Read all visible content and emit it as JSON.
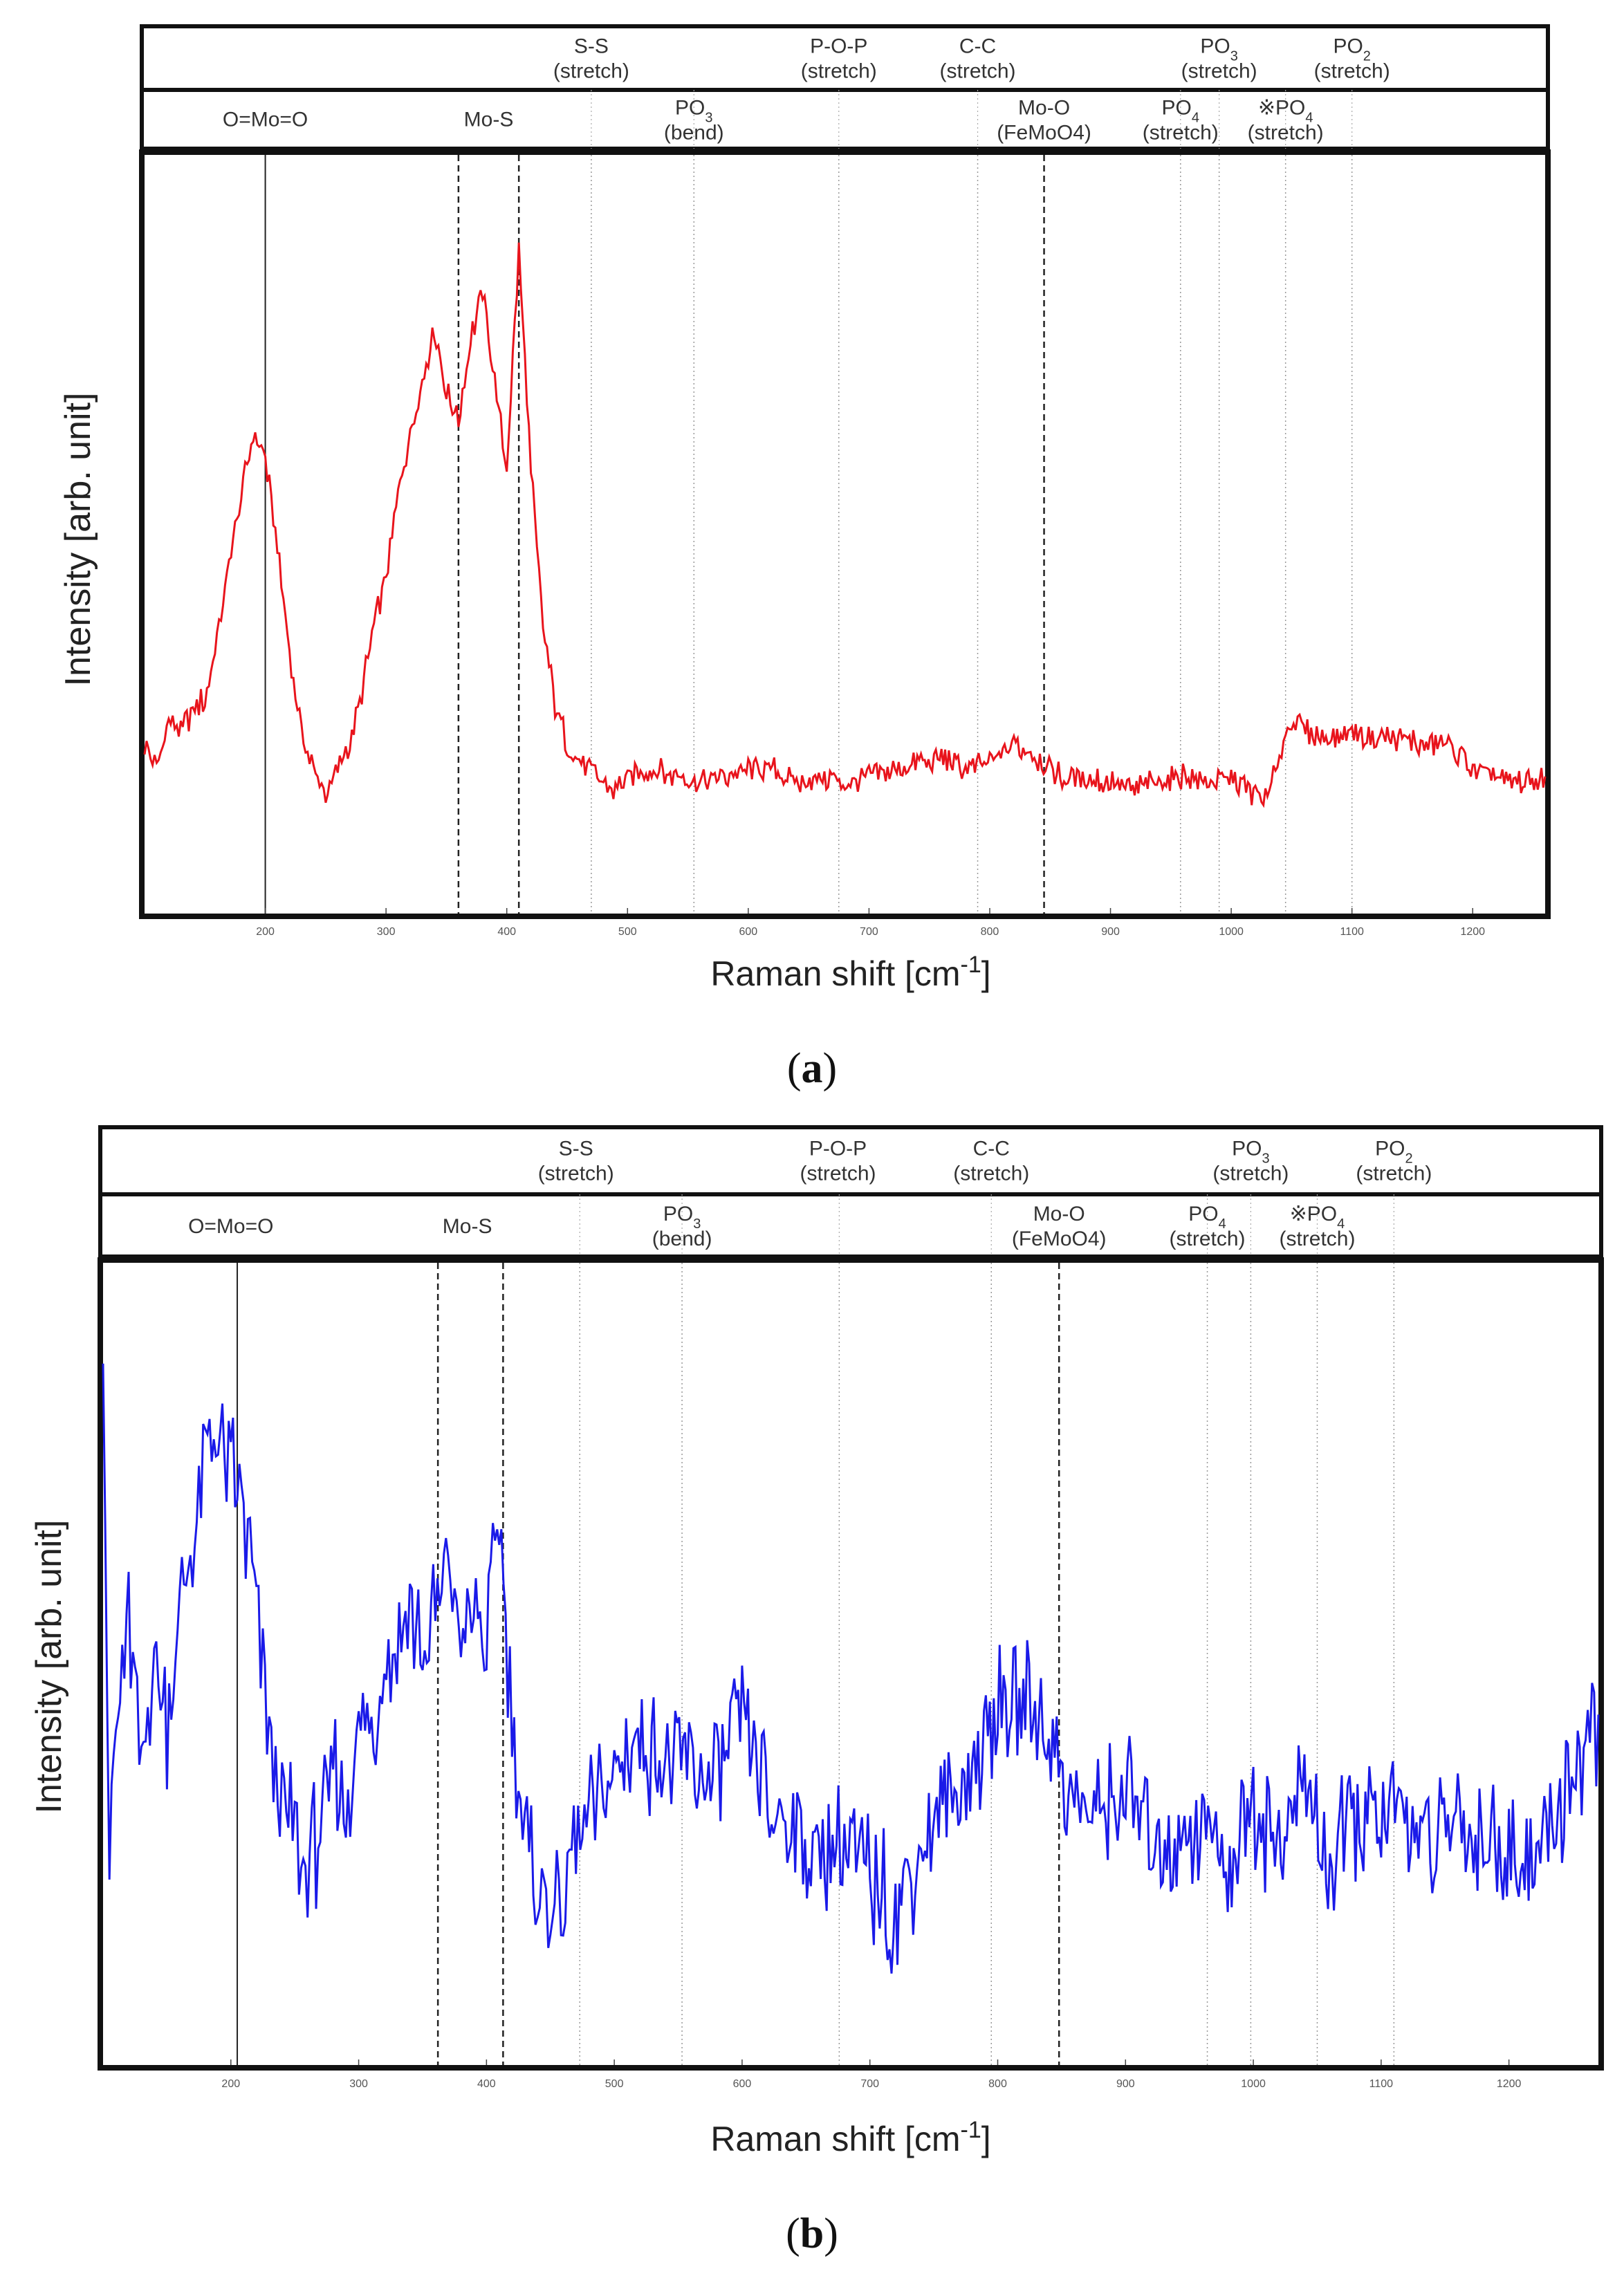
{
  "chart_data": [
    {
      "type": "line",
      "panel": "(a)",
      "panel_letter": "a",
      "xlabel": "Raman shift [cm-1]",
      "ylabel": "Intensity [arb. unit]",
      "xlim": [
        100,
        1260
      ],
      "ylim": [
        0,
        100
      ],
      "xticks": [
        200,
        300,
        400,
        500,
        600,
        700,
        800,
        900,
        1000,
        1100,
        1200
      ],
      "series": [
        {
          "name": "spectrum-a",
          "color": "#e8141c",
          "x": [
            100,
            110,
            120,
            130,
            140,
            150,
            160,
            170,
            180,
            190,
            200,
            210,
            220,
            230,
            240,
            250,
            260,
            270,
            280,
            290,
            300,
            310,
            320,
            330,
            340,
            350,
            360,
            370,
            380,
            390,
            400,
            410,
            420,
            430,
            440,
            450,
            460,
            470,
            480,
            490,
            500,
            520,
            540,
            560,
            580,
            600,
            620,
            640,
            660,
            680,
            700,
            720,
            740,
            760,
            780,
            800,
            820,
            840,
            860,
            880,
            900,
            920,
            940,
            960,
            980,
            1000,
            1020,
            1030,
            1040,
            1050,
            1060,
            1080,
            1100,
            1120,
            1140,
            1160,
            1180,
            1200,
            1220,
            1240,
            1260
          ],
          "values": [
            18,
            14,
            22,
            20,
            23,
            25,
            34,
            46,
            56,
            66,
            62,
            48,
            32,
            20,
            14,
            10,
            14,
            18,
            26,
            36,
            44,
            56,
            66,
            74,
            82,
            72,
            68,
            80,
            88,
            74,
            60,
            94,
            60,
            36,
            24,
            18,
            16,
            14,
            12,
            11,
            13,
            14,
            13,
            12,
            13,
            14,
            14,
            12,
            13,
            12,
            13,
            14,
            15,
            16,
            14,
            15,
            18,
            16,
            13,
            13,
            12,
            11,
            12,
            13,
            12,
            13,
            10,
            9,
            16,
            22,
            20,
            19,
            20,
            19,
            19,
            18,
            18,
            14,
            13,
            12,
            13
          ]
        }
      ],
      "annotations_top": [
        {
          "text": "S-S",
          "sub": "(stretch)",
          "x": 470
        },
        {
          "text": "P-O-P",
          "sub": "(stretch)",
          "x": 675
        },
        {
          "text": "C-C",
          "sub": "(stretch)",
          "x": 790
        },
        {
          "text": "PO",
          "subscript": "3",
          "sub": "(stretch)",
          "x": 990
        },
        {
          "text": "PO",
          "subscript": "2",
          "sub": "(stretch)",
          "x": 1100
        }
      ],
      "annotations_mid": [
        {
          "text": "O=Mo=O",
          "x": 200
        },
        {
          "text": "Mo-S",
          "x": 385
        },
        {
          "text": "PO",
          "subscript": "3",
          "sub": "(bend)",
          "x": 555
        },
        {
          "text": "Mo-O",
          "sub": "(FeMoO4)",
          "x": 845
        },
        {
          "text": "PO",
          "subscript": "4",
          "sub": "(stretch)",
          "x": 958
        },
        {
          "text": "※PO",
          "subscript": "4",
          "sub": "(stretch)",
          "x": 1045
        }
      ],
      "ref_lines": [
        {
          "x": 200,
          "style": "solid"
        },
        {
          "x": 360,
          "style": "dashed"
        },
        {
          "x": 410,
          "style": "dashed"
        },
        {
          "x": 470,
          "style": "dotted"
        },
        {
          "x": 555,
          "style": "dotted"
        },
        {
          "x": 675,
          "style": "dotted"
        },
        {
          "x": 790,
          "style": "dotted"
        },
        {
          "x": 845,
          "style": "dashed"
        },
        {
          "x": 958,
          "style": "dotted"
        },
        {
          "x": 990,
          "style": "dotted"
        },
        {
          "x": 1045,
          "style": "dotted"
        },
        {
          "x": 1100,
          "style": "dotted"
        }
      ]
    },
    {
      "type": "line",
      "panel": "(b)",
      "panel_letter": "b",
      "xlabel": "Raman shift [cm-1]",
      "ylabel": "Intensity [arb. unit]",
      "xlim": [
        100,
        1270
      ],
      "ylim": [
        0,
        100
      ],
      "xticks": [
        200,
        300,
        400,
        500,
        600,
        700,
        800,
        900,
        1000,
        1100,
        1200
      ],
      "series": [
        {
          "name": "spectrum-b",
          "color": "#1a1ae8",
          "x": [
            100,
            105,
            110,
            120,
            130,
            140,
            150,
            160,
            170,
            180,
            190,
            200,
            210,
            220,
            230,
            240,
            250,
            260,
            270,
            280,
            290,
            300,
            310,
            320,
            330,
            340,
            350,
            360,
            370,
            380,
            390,
            400,
            410,
            420,
            430,
            440,
            450,
            460,
            470,
            480,
            490,
            500,
            520,
            540,
            560,
            580,
            600,
            620,
            640,
            660,
            680,
            700,
            720,
            740,
            760,
            780,
            800,
            820,
            840,
            860,
            880,
            900,
            920,
            940,
            960,
            980,
            1000,
            1020,
            1040,
            1060,
            1080,
            1100,
            1120,
            1140,
            1160,
            1180,
            1200,
            1220,
            1240,
            1260,
            1270
          ],
          "values": [
            96,
            20,
            40,
            55,
            35,
            50,
            40,
            55,
            65,
            76,
            80,
            75,
            68,
            55,
            40,
            30,
            25,
            20,
            28,
            34,
            30,
            38,
            40,
            50,
            52,
            56,
            50,
            55,
            62,
            52,
            56,
            50,
            70,
            40,
            25,
            20,
            15,
            18,
            25,
            28,
            30,
            35,
            38,
            36,
            35,
            33,
            42,
            30,
            28,
            22,
            24,
            20,
            16,
            24,
            30,
            34,
            42,
            44,
            40,
            30,
            28,
            34,
            24,
            26,
            28,
            22,
            30,
            25,
            32,
            22,
            28,
            26,
            30,
            24,
            28,
            26,
            24,
            22,
            30,
            38,
            42
          ]
        }
      ],
      "annotations_top": [
        {
          "text": "S-S",
          "sub": "(stretch)",
          "x": 470
        },
        {
          "text": "P-O-P",
          "sub": "(stretch)",
          "x": 675
        },
        {
          "text": "C-C",
          "sub": "(stretch)",
          "x": 795
        },
        {
          "text": "PO",
          "subscript": "3",
          "sub": "(stretch)",
          "x": 998
        },
        {
          "text": "PO",
          "subscript": "2",
          "sub": "(stretch)",
          "x": 1110
        }
      ],
      "annotations_mid": [
        {
          "text": "O=Mo=O",
          "x": 200
        },
        {
          "text": "Mo-S",
          "x": 385
        },
        {
          "text": "PO",
          "subscript": "3",
          "sub": "(bend)",
          "x": 553
        },
        {
          "text": "Mo-O",
          "sub": "(FeMoO4)",
          "x": 848
        },
        {
          "text": "PO",
          "subscript": "4",
          "sub": "(stretch)",
          "x": 964
        },
        {
          "text": "※PO",
          "subscript": "4",
          "sub": "(stretch)",
          "x": 1050
        }
      ],
      "ref_lines": [
        {
          "x": 205,
          "style": "solid"
        },
        {
          "x": 362,
          "style": "dashed"
        },
        {
          "x": 413,
          "style": "dashed"
        },
        {
          "x": 473,
          "style": "dotted"
        },
        {
          "x": 553,
          "style": "dotted"
        },
        {
          "x": 676,
          "style": "dotted"
        },
        {
          "x": 795,
          "style": "dotted"
        },
        {
          "x": 848,
          "style": "dashed"
        },
        {
          "x": 964,
          "style": "dotted"
        },
        {
          "x": 998,
          "style": "dotted"
        },
        {
          "x": 1050,
          "style": "dotted"
        },
        {
          "x": 1110,
          "style": "dotted"
        }
      ]
    }
  ]
}
